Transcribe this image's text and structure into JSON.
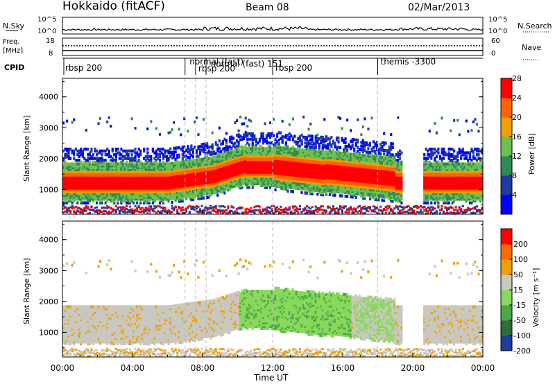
{
  "header": {
    "station": "Hokkaido (fitACF)",
    "beam": "Beam 08",
    "date": "02/Mar/2013"
  },
  "panels": {
    "sky": {
      "left_label": "N.Sky",
      "right_label": "N.Search",
      "left_ticks": [
        "10^5",
        "10^0"
      ],
      "right_ticks": [
        "10^5",
        "10^0"
      ]
    },
    "freq": {
      "left_label_1": "Freq.",
      "left_label_2": "[MHz]",
      "right_label": "Nave",
      "left_ticks": [
        "18",
        "8"
      ],
      "right_ticks": [
        "60",
        "0"
      ]
    },
    "cpid": {
      "label": "CPID",
      "modes": [
        {
          "label": "rbsp 200",
          "start_hour": 0.0
        },
        {
          "label": "normal (fast)",
          "start_hour": 7.1
        },
        {
          "label": "rbsp 200",
          "start_hour": 7.6
        },
        {
          "label": "normal (fast) 151",
          "start_hour": 8.3
        },
        {
          "label": "rbsp 200",
          "start_hour": 12.0
        },
        {
          "label": "themis -3300",
          "start_hour": 18.0
        }
      ],
      "mode_lines_hours": [
        7.0,
        7.6,
        8.2,
        12.0,
        18.0
      ]
    }
  },
  "chart_data": [
    {
      "type": "heatmap",
      "name": "power",
      "ylabel": "Slant Range [km]",
      "yticks": [
        "1000",
        "2000",
        "3000",
        "4000"
      ],
      "ylim": [
        200,
        4600
      ],
      "colorbar": {
        "label": "Power [dB]",
        "ticks": [
          "4",
          "8",
          "12",
          "16",
          "20",
          "24",
          "28"
        ],
        "colors": [
          "#0000ff",
          "#1e3ca0",
          "#2e8b57",
          "#6fbf4f",
          "#f0a000",
          "#ff6400",
          "#ff0000"
        ]
      }
    },
    {
      "type": "heatmap",
      "name": "velocity",
      "xlabel": "Time UT",
      "ylabel": "Slant Range [km]",
      "yticks": [
        "1000",
        "2000",
        "3000",
        "4000"
      ],
      "ylim": [
        200,
        4600
      ],
      "xticks": [
        "00:00",
        "04:00",
        "08:00",
        "12:00",
        "16:00",
        "20:00",
        "00:00"
      ],
      "xlim_hours": [
        0,
        24
      ],
      "colorbar": {
        "label": "Velocity [m s⁻¹]",
        "ticks": [
          "200",
          "100",
          "50",
          "15",
          "-15",
          "-50",
          "-100",
          "-200"
        ],
        "colors": [
          "#1e3ca0",
          "#2e6e3a",
          "#4aa84a",
          "#8ad85a",
          "#c8c8c0",
          "#f0a000",
          "#ff6a00",
          "#ff0000"
        ]
      }
    }
  ]
}
